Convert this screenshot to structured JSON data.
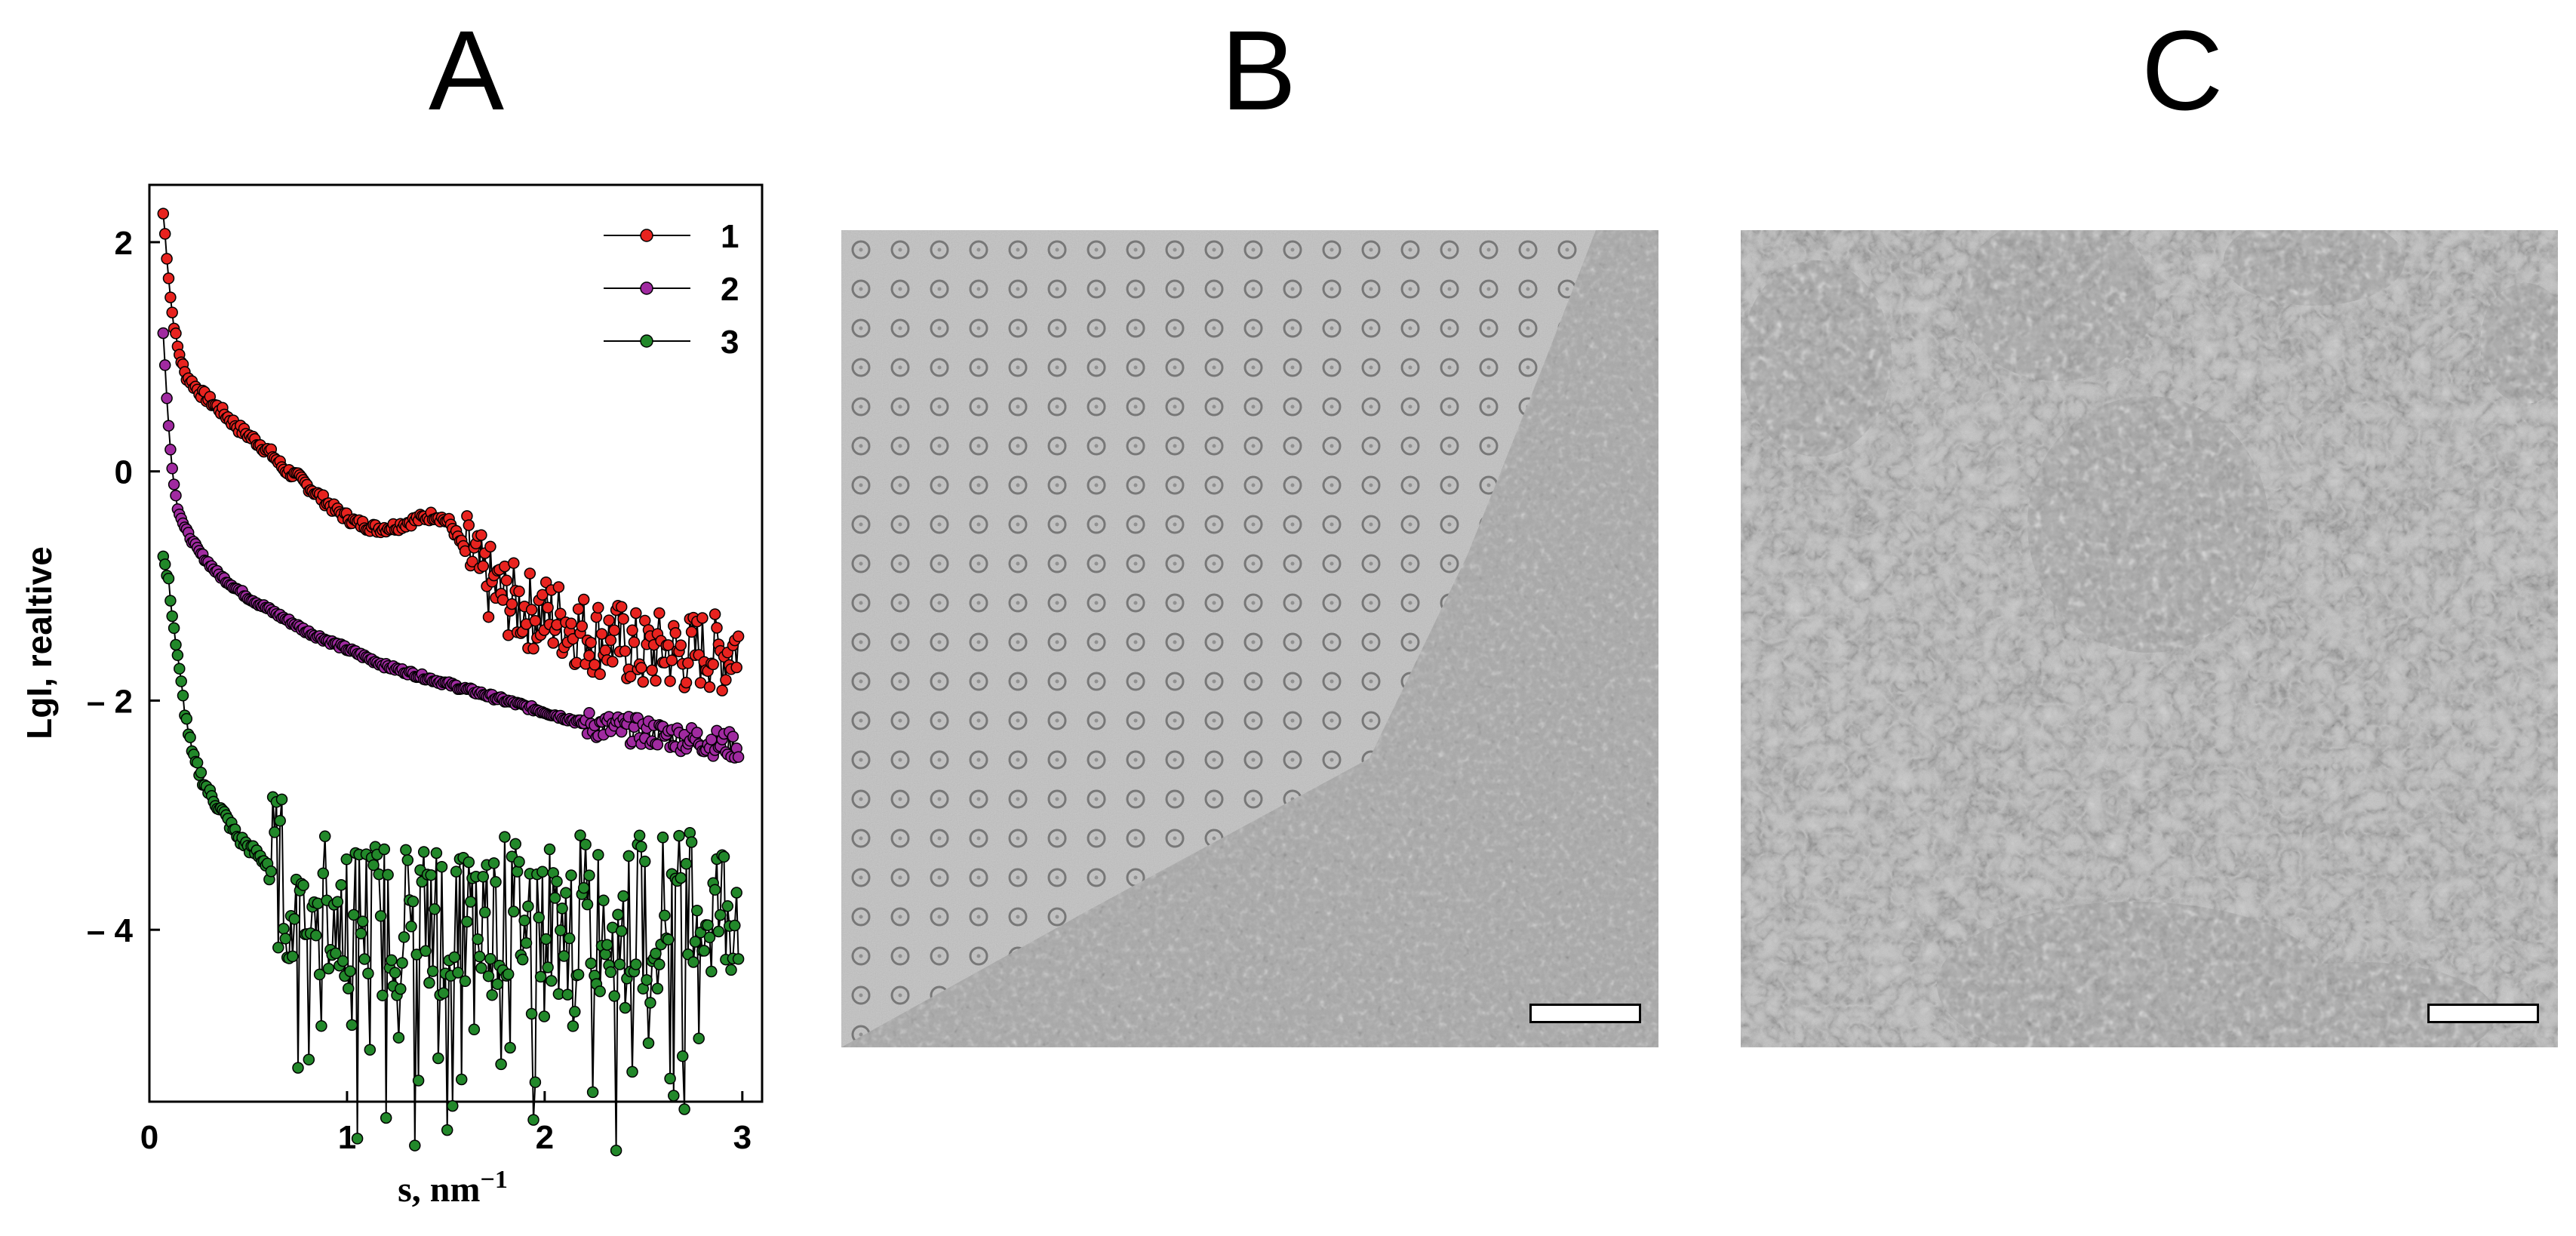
{
  "panels": {
    "a_label": "A",
    "b_label": "B",
    "c_label": "C"
  },
  "chart_data": {
    "type": "scatter",
    "title": "",
    "xlabel": "s, nm",
    "xlabel_superscript": "−1",
    "ylabel": "LgI, realtive",
    "xlim": [
      0,
      3.1
    ],
    "ylim": [
      -5.5,
      2.5
    ],
    "xticks": [
      0,
      1,
      2,
      3
    ],
    "yticks": [
      2,
      0,
      -2,
      -4
    ],
    "ytick_labels": [
      "2",
      "0",
      "– 2",
      "– 4"
    ],
    "grid": false,
    "legend_position": "top-right",
    "series": [
      {
        "name": "1",
        "color": "#e8231f",
        "points": [
          [
            0.07,
            2.25
          ],
          [
            0.09,
            1.85
          ],
          [
            0.11,
            1.45
          ],
          [
            0.14,
            1.1
          ],
          [
            0.18,
            0.85
          ],
          [
            0.25,
            0.7
          ],
          [
            0.35,
            0.55
          ],
          [
            0.45,
            0.38
          ],
          [
            0.55,
            0.25
          ],
          [
            0.62,
            0.15
          ],
          [
            0.68,
            0.02
          ],
          [
            0.75,
            -0.05
          ],
          [
            0.85,
            -0.2
          ],
          [
            0.95,
            -0.35
          ],
          [
            1.05,
            -0.45
          ],
          [
            1.15,
            -0.5
          ],
          [
            1.25,
            -0.48
          ],
          [
            1.35,
            -0.42
          ],
          [
            1.45,
            -0.38
          ],
          [
            1.52,
            -0.45
          ],
          [
            1.6,
            -0.7
          ],
          [
            1.7,
            -0.95
          ],
          [
            1.8,
            -1.1
          ],
          [
            1.9,
            -1.2
          ],
          [
            2.0,
            -1.25
          ],
          [
            2.1,
            -1.3
          ],
          [
            2.2,
            -1.4
          ],
          [
            2.3,
            -1.45
          ],
          [
            2.4,
            -1.5
          ],
          [
            2.5,
            -1.6
          ],
          [
            2.6,
            -1.55
          ],
          [
            2.7,
            -1.6
          ],
          [
            2.8,
            -1.55
          ],
          [
            2.9,
            -1.6
          ],
          [
            2.98,
            -1.5
          ]
        ]
      },
      {
        "name": "2",
        "color": "#a02aa0",
        "points": [
          [
            0.07,
            1.2
          ],
          [
            0.09,
            0.6
          ],
          [
            0.11,
            0.1
          ],
          [
            0.14,
            -0.3
          ],
          [
            0.18,
            -0.5
          ],
          [
            0.25,
            -0.7
          ],
          [
            0.35,
            -0.9
          ],
          [
            0.5,
            -1.1
          ],
          [
            0.65,
            -1.25
          ],
          [
            0.8,
            -1.4
          ],
          [
            1.0,
            -1.55
          ],
          [
            1.2,
            -1.7
          ],
          [
            1.4,
            -1.8
          ],
          [
            1.6,
            -1.9
          ],
          [
            1.8,
            -2.0
          ],
          [
            2.0,
            -2.1
          ],
          [
            2.2,
            -2.2
          ],
          [
            2.4,
            -2.25
          ],
          [
            2.6,
            -2.3
          ],
          [
            2.8,
            -2.35
          ],
          [
            2.98,
            -2.4
          ]
        ]
      },
      {
        "name": "3",
        "color": "#22882a",
        "points": [
          [
            0.07,
            -0.75
          ],
          [
            0.1,
            -1.0
          ],
          [
            0.14,
            -1.6
          ],
          [
            0.18,
            -2.1
          ],
          [
            0.22,
            -2.5
          ],
          [
            0.3,
            -2.8
          ],
          [
            0.38,
            -3.0
          ],
          [
            0.45,
            -3.2
          ],
          [
            0.55,
            -3.35
          ],
          [
            0.65,
            -3.5
          ],
          [
            0.8,
            -3.7
          ],
          [
            1.0,
            -3.85
          ],
          [
            1.2,
            -3.9
          ],
          [
            1.4,
            -3.85
          ],
          [
            1.6,
            -3.95
          ],
          [
            1.8,
            -3.85
          ],
          [
            2.0,
            -3.9
          ],
          [
            2.2,
            -3.85
          ],
          [
            2.4,
            -3.9
          ],
          [
            2.6,
            -3.8
          ],
          [
            2.8,
            -3.85
          ],
          [
            2.98,
            -3.75
          ]
        ]
      }
    ]
  },
  "images": {
    "b_name": "micrograph-b",
    "c_name": "micrograph-c"
  }
}
